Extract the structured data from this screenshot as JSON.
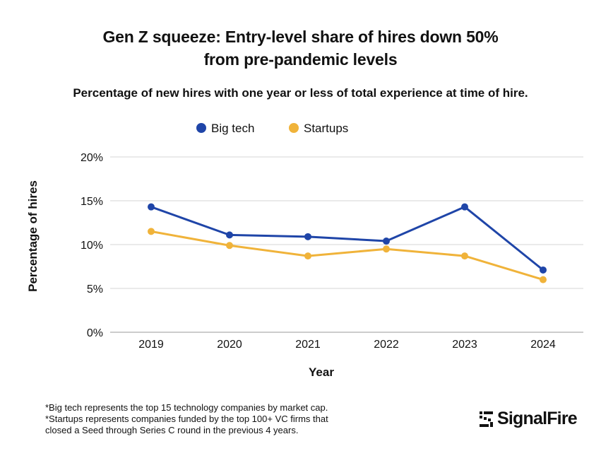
{
  "chart_data": {
    "type": "line",
    "title_line1": "Gen Z squeeze: Entry-level share of hires down 50%",
    "title_line2": "from pre-pandemic levels",
    "subtitle": "Percentage of new hires with one year or less of total experience at time of hire.",
    "xlabel": "Year",
    "ylabel": "Percentage of hires",
    "categories": [
      "2019",
      "2020",
      "2021",
      "2022",
      "2023",
      "2024"
    ],
    "yticks": [
      0,
      5,
      10,
      15,
      20
    ],
    "ytick_labels": [
      "0%",
      "5%",
      "10%",
      "15%",
      "20%"
    ],
    "ylim": [
      0,
      20
    ],
    "legend_position": "top",
    "series": [
      {
        "name": "Big tech",
        "color": "#1f45a8",
        "values": [
          14.3,
          11.1,
          10.9,
          10.4,
          14.3,
          7.1
        ]
      },
      {
        "name": "Startups",
        "color": "#f0b33a",
        "values": [
          11.5,
          9.9,
          8.7,
          9.5,
          8.7,
          6.0
        ]
      }
    ]
  },
  "footnotes": {
    "line1": "*Big tech represents the top 15 technology companies by market cap.",
    "line2": "*Startups represents companies funded by the top 100+ VC firms that",
    "line3": "closed a Seed through Series C round in the previous 4 years."
  },
  "logo": {
    "text": "SignalFire",
    "icon": "signalfire-logo-icon"
  }
}
